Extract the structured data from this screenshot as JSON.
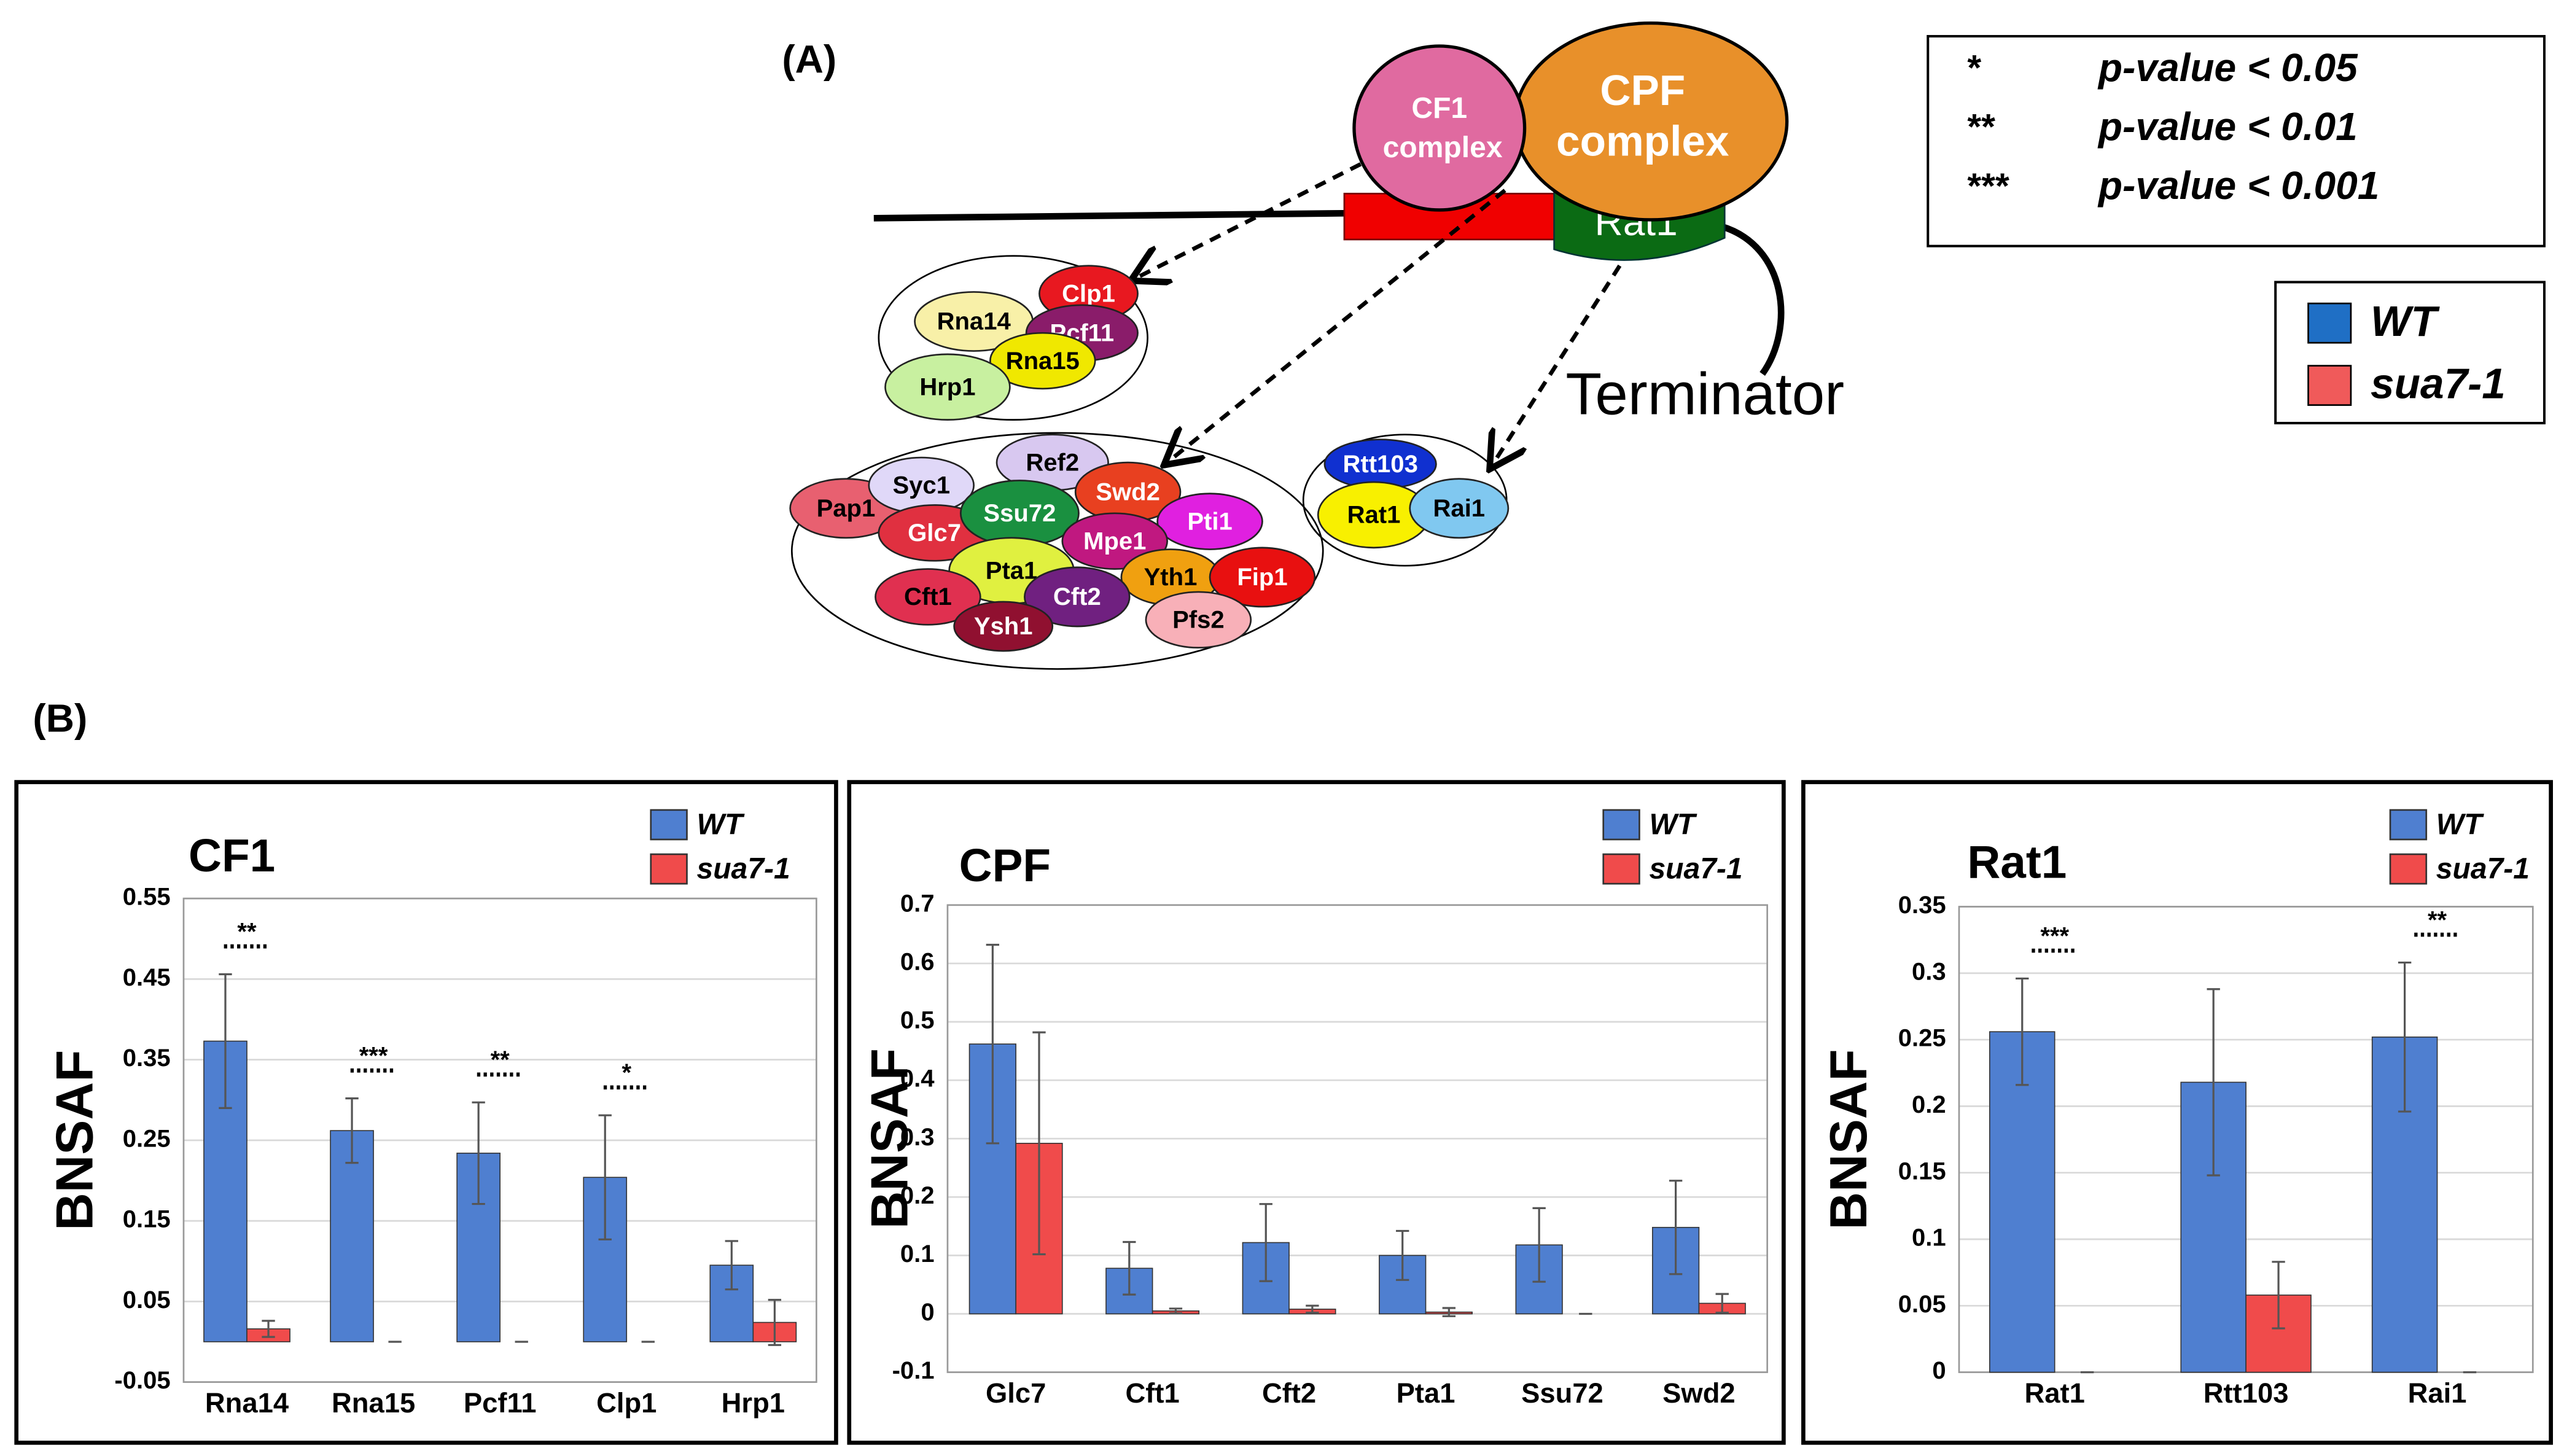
{
  "diagram": {
    "panel_label": "(A)",
    "cf1_complex": [
      "CF1",
      "complex"
    ],
    "cpf_complex": [
      "CPF",
      "complex"
    ],
    "rat1": "Rat1",
    "terminator": "Terminator",
    "groups": [
      [
        "Clp1",
        "Rna14",
        "Pcf11",
        "Rna15",
        "Hrp1"
      ],
      [
        "Pap1",
        "Syc1",
        "Ref2",
        "Swd2",
        "Glc7",
        "Ssu72",
        "Pti1",
        "Mpe1",
        "Pta1",
        "Yth1",
        "Fip1",
        "Cft1",
        "Cft2",
        "Ysh1",
        "Pfs2"
      ],
      [
        "Rtt103",
        "Rat1",
        "Rai1"
      ]
    ]
  },
  "pvalue_legend": [
    {
      "stars": "*",
      "text": "p-value < 0.05"
    },
    {
      "stars": "**",
      "text": "p-value < 0.01"
    },
    {
      "stars": "***",
      "text": "p-value < 0.001"
    }
  ],
  "legend": [
    {
      "name": "WT",
      "color": "#1f6fc5"
    },
    {
      "name": "sua7-1",
      "color": "#f05a5a"
    }
  ],
  "panel_b_label": "(B)",
  "chart_data": [
    {
      "type": "bar",
      "title": "CF1",
      "y_label": "BNSAF",
      "categories": [
        "Rna14",
        "Rna15",
        "Pcf11",
        "Clp1",
        "Hrp1"
      ],
      "series": [
        {
          "name": "WT",
          "color": "#4f7fd0",
          "values": [
            0.373,
            0.262,
            0.234,
            0.204,
            0.095
          ],
          "errors": [
            0.083,
            0.04,
            0.063,
            0.077,
            0.03
          ]
        },
        {
          "name": "sua7-1",
          "color": "#f04b4b",
          "values": [
            0.016,
            0,
            0,
            0,
            0.024
          ],
          "errors": [
            0.01,
            0,
            0,
            0,
            0.028
          ]
        }
      ],
      "significance": [
        "**",
        "***",
        "**",
        "*",
        null
      ],
      "ylim": [
        -0.05,
        0.55
      ],
      "yticks": [
        -0.05,
        0.05,
        0.15,
        0.25,
        0.35,
        0.45,
        0.55
      ],
      "grid": true
    },
    {
      "type": "bar",
      "title": "CPF",
      "y_label": "BNSAF",
      "categories": [
        "Glc7",
        "Cft1",
        "Cft2",
        "Pta1",
        "Ssu72",
        "Swd2"
      ],
      "series": [
        {
          "name": "WT",
          "color": "#4f7fd0",
          "values": [
            0.462,
            0.078,
            0.122,
            0.1,
            0.118,
            0.148
          ],
          "errors": [
            0.17,
            0.045,
            0.066,
            0.042,
            0.063,
            0.08
          ]
        },
        {
          "name": "sua7-1",
          "color": "#f04b4b",
          "values": [
            0.292,
            0.005,
            0.008,
            0.003,
            0,
            0.018
          ],
          "errors": [
            0.19,
            0.004,
            0.006,
            0.007,
            0,
            0.016
          ]
        }
      ],
      "ylim": [
        -0.1,
        0.7
      ],
      "yticks": [
        -0.1,
        0,
        0.1,
        0.2,
        0.3,
        0.4,
        0.5,
        0.6,
        0.7
      ],
      "grid": true
    },
    {
      "type": "bar",
      "title": "Rat1",
      "y_label": "BNSAF",
      "categories": [
        "Rat1",
        "Rtt103",
        "Rai1"
      ],
      "series": [
        {
          "name": "WT",
          "color": "#4f7fd0",
          "values": [
            0.256,
            0.218,
            0.252
          ],
          "errors": [
            0.04,
            0.07,
            0.056
          ]
        },
        {
          "name": "sua7-1",
          "color": "#f04b4b",
          "values": [
            0,
            0.058,
            0
          ],
          "errors": [
            0,
            0.025,
            0
          ]
        }
      ],
      "significance": [
        "***",
        null,
        "**"
      ],
      "ylim": [
        0,
        0.35
      ],
      "yticks": [
        0,
        0.05,
        0.1,
        0.15,
        0.2,
        0.25,
        0.3,
        0.35
      ],
      "grid": true
    }
  ]
}
